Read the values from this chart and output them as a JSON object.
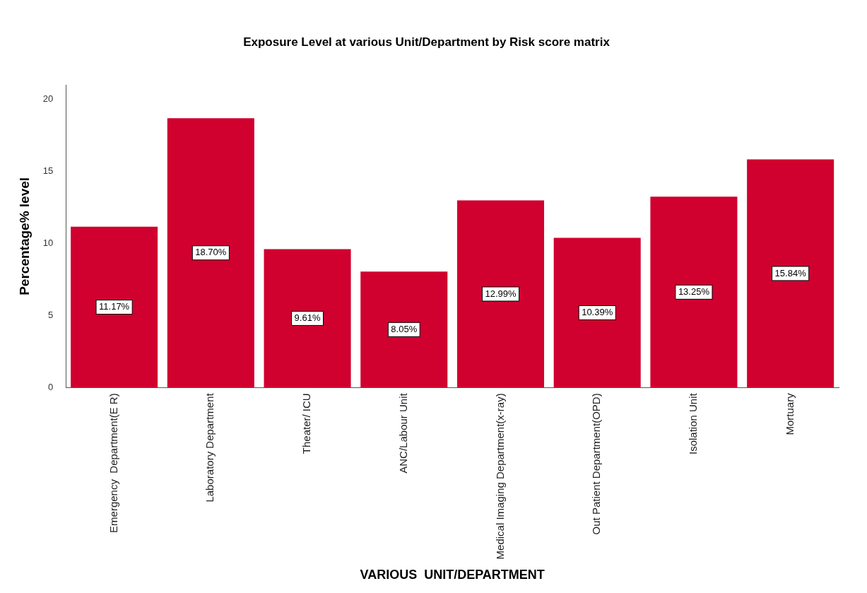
{
  "chart_data": {
    "type": "bar",
    "title": "Exposure Level at various Unit/Department by Risk score matrix",
    "xlabel": "VARIOUS  UNIT/DEPARTMENT",
    "ylabel": "Percentage% level",
    "categories": [
      "Emergency  Department(E R)",
      "Laboratory Department",
      "Theater/ ICU",
      "ANC/Labour Unit",
      "Medical Imaging Department(x-ray)",
      "Out Patient Department(OPD)",
      "Isolation Unit",
      "Mortuary"
    ],
    "values": [
      11.17,
      18.7,
      9.61,
      8.05,
      12.99,
      10.39,
      13.25,
      15.84
    ],
    "value_labels": [
      "11.17%",
      "18.70%",
      "9.61%",
      "8.05%",
      "12.99%",
      "10.39%",
      "13.25%",
      "15.84%"
    ],
    "color": "#d0002f",
    "ylim": [
      0,
      21
    ],
    "yticks": [
      0,
      5,
      10,
      15,
      20
    ],
    "grid": false,
    "legend": false
  }
}
